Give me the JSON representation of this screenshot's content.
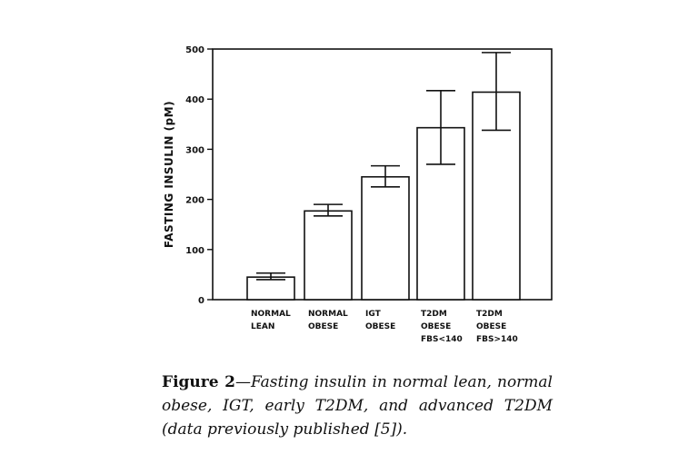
{
  "chart_data": {
    "type": "bar",
    "ylabel": "FASTING INSULIN (pM)",
    "xlabel": "",
    "ylim": [
      0,
      500
    ],
    "yticks": [
      0,
      100,
      200,
      300,
      400,
      500
    ],
    "categories": [
      [
        "NORMAL",
        "LEAN"
      ],
      [
        "NORMAL",
        "OBESE"
      ],
      [
        "IGT",
        "OBESE"
      ],
      [
        "T2DM",
        "OBESE",
        "FBS<140"
      ],
      [
        "T2DM",
        "OBESE",
        "FBS>140"
      ]
    ],
    "values": [
      45,
      177,
      245,
      343,
      414
    ],
    "error_low": [
      40,
      167,
      225,
      270,
      338
    ],
    "error_high": [
      53,
      190,
      267,
      417,
      493
    ],
    "grid": false
  },
  "caption": {
    "lead": "Figure 2",
    "text": "—Fasting insulin in normal lean, normal obese, IGT, early T2DM, and advanced T2DM (data previously published [5])."
  }
}
